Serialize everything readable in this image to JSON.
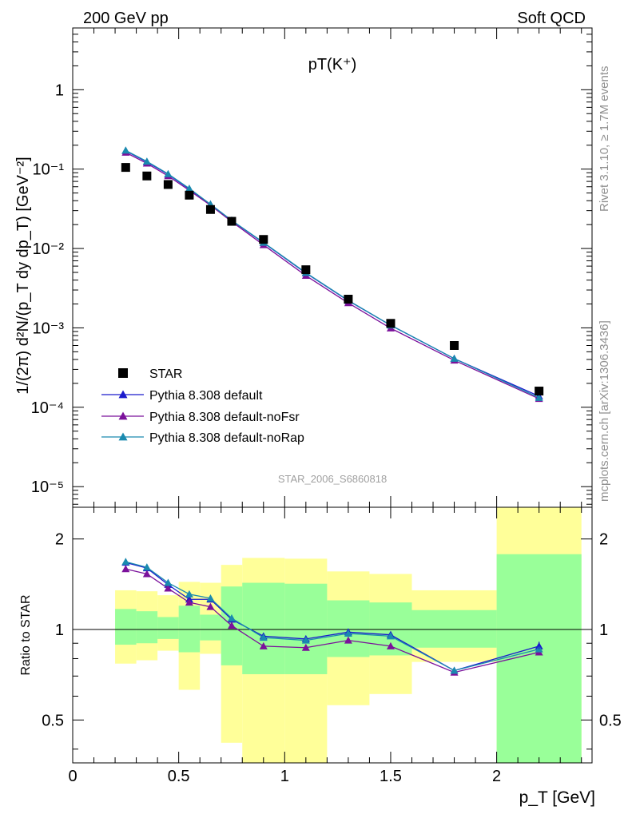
{
  "header": {
    "left": "200 GeV pp",
    "right": "Soft QCD"
  },
  "side_labels": {
    "rivet": "Rivet 3.1.10, ≥ 1.7M events",
    "mcplots": "mcplots.cern.ch [arXiv:1306.3436]"
  },
  "watermark": "STAR_2006_S6860818",
  "colors": {
    "data": "#000000",
    "default": "#1a1acc",
    "noFsr": "#7b119b",
    "noRap": "#1a8aaf",
    "band_outer": "#ffff99",
    "band_inner": "#99ff99"
  },
  "chart_data": [
    {
      "type": "scatter",
      "title": "pT(K⁺)",
      "xlabel": "p_T [GeV]",
      "ylabel": "1/(2π) d²N/(p_T dy dp_T) [GeV⁻²]",
      "yscale": "log",
      "xlim": [
        0,
        2.45
      ],
      "ylim": [
        5.5e-06,
        6
      ],
      "y_ticks": [
        "10⁻⁵",
        "10⁻⁴",
        "10⁻³",
        "10⁻²",
        "10⁻¹",
        "1"
      ],
      "legend_position": "bottom-left",
      "series": [
        {
          "name": "STAR",
          "style": "square",
          "x": [
            0.25,
            0.35,
            0.45,
            0.55,
            0.65,
            0.75,
            0.9,
            1.1,
            1.3,
            1.5,
            1.8,
            2.2
          ],
          "y": [
            0.105,
            0.082,
            0.064,
            0.047,
            0.031,
            0.022,
            0.013,
            0.0054,
            0.0023,
            0.00114,
            0.0006,
            0.00016
          ]
        },
        {
          "name": "Pythia 8.308 default",
          "style": "triangle",
          "x": [
            0.25,
            0.35,
            0.45,
            0.55,
            0.65,
            0.75,
            0.9,
            1.1,
            1.3,
            1.5,
            1.8,
            2.2
          ],
          "y": [
            0.17,
            0.123,
            0.086,
            0.056,
            0.036,
            0.0225,
            0.0118,
            0.0049,
            0.0022,
            0.00108,
            0.00041,
            0.000138
          ]
        },
        {
          "name": "Pythia 8.308 default-noFsr",
          "style": "triangle",
          "x": [
            0.25,
            0.35,
            0.45,
            0.55,
            0.65,
            0.75,
            0.9,
            1.1,
            1.3,
            1.5,
            1.8,
            2.2
          ],
          "y": [
            0.162,
            0.118,
            0.082,
            0.054,
            0.035,
            0.0218,
            0.0111,
            0.00455,
            0.00206,
            0.00099,
            0.00039,
            0.000128
          ]
        },
        {
          "name": "Pythia 8.308 default-noRap",
          "style": "triangle",
          "x": [
            0.25,
            0.35,
            0.45,
            0.55,
            0.65,
            0.75,
            0.9,
            1.1,
            1.3,
            1.5,
            1.8,
            2.2
          ],
          "y": [
            0.172,
            0.125,
            0.087,
            0.057,
            0.036,
            0.0226,
            0.0119,
            0.00495,
            0.00222,
            0.00108,
            0.00041,
            0.000132
          ]
        }
      ]
    },
    {
      "type": "line",
      "xlabel": "p_T [GeV]",
      "ylabel": "Ratio to STAR",
      "yscale": "log",
      "xlim": [
        0,
        2.45
      ],
      "ylim": [
        0.36,
        2.55
      ],
      "x_ticks": [
        "0",
        "0.5",
        "1",
        "1.5",
        "2"
      ],
      "y_ticks": [
        "0.5",
        "1",
        "2"
      ],
      "bands": {
        "edges": [
          0.2,
          0.3,
          0.4,
          0.5,
          0.6,
          0.7,
          0.8,
          1.0,
          1.2,
          1.4,
          1.6,
          2.0,
          2.4
        ],
        "outer_low": [
          0.77,
          0.79,
          0.85,
          0.63,
          0.83,
          0.42,
          0.36,
          0.36,
          0.56,
          0.61,
          0.78,
          0.36
        ],
        "outer_high": [
          1.35,
          1.34,
          1.3,
          1.44,
          1.43,
          1.64,
          1.73,
          1.72,
          1.56,
          1.53,
          1.35,
          2.58
        ],
        "inner_low": [
          0.89,
          0.9,
          0.93,
          0.84,
          0.92,
          0.76,
          0.71,
          0.71,
          0.81,
          0.82,
          0.87,
          0.36
        ],
        "inner_high": [
          1.17,
          1.15,
          1.1,
          1.2,
          1.12,
          1.39,
          1.43,
          1.42,
          1.25,
          1.23,
          1.16,
          1.78
        ]
      },
      "series": [
        {
          "name": "Pythia 8.308 default",
          "x": [
            0.25,
            0.35,
            0.45,
            0.55,
            0.65,
            0.75,
            0.9,
            1.1,
            1.3,
            1.5,
            1.8,
            2.2
          ],
          "y": [
            1.67,
            1.6,
            1.41,
            1.26,
            1.26,
            1.08,
            0.95,
            0.93,
            0.98,
            0.96,
            0.73,
            0.88
          ]
        },
        {
          "name": "Pythia 8.308 default-noFsr",
          "x": [
            0.25,
            0.35,
            0.45,
            0.55,
            0.65,
            0.75,
            0.9,
            1.1,
            1.3,
            1.5,
            1.8,
            2.2
          ],
          "y": [
            1.59,
            1.53,
            1.37,
            1.23,
            1.19,
            1.03,
            0.88,
            0.87,
            0.92,
            0.88,
            0.72,
            0.84
          ]
        },
        {
          "name": "Pythia 8.308 default-noRap",
          "x": [
            0.25,
            0.35,
            0.45,
            0.55,
            0.65,
            0.75,
            0.9,
            1.1,
            1.3,
            1.5,
            1.8,
            2.2
          ],
          "y": [
            1.68,
            1.61,
            1.43,
            1.31,
            1.27,
            1.09,
            0.94,
            0.92,
            0.97,
            0.95,
            0.73,
            0.86
          ]
        }
      ]
    }
  ]
}
